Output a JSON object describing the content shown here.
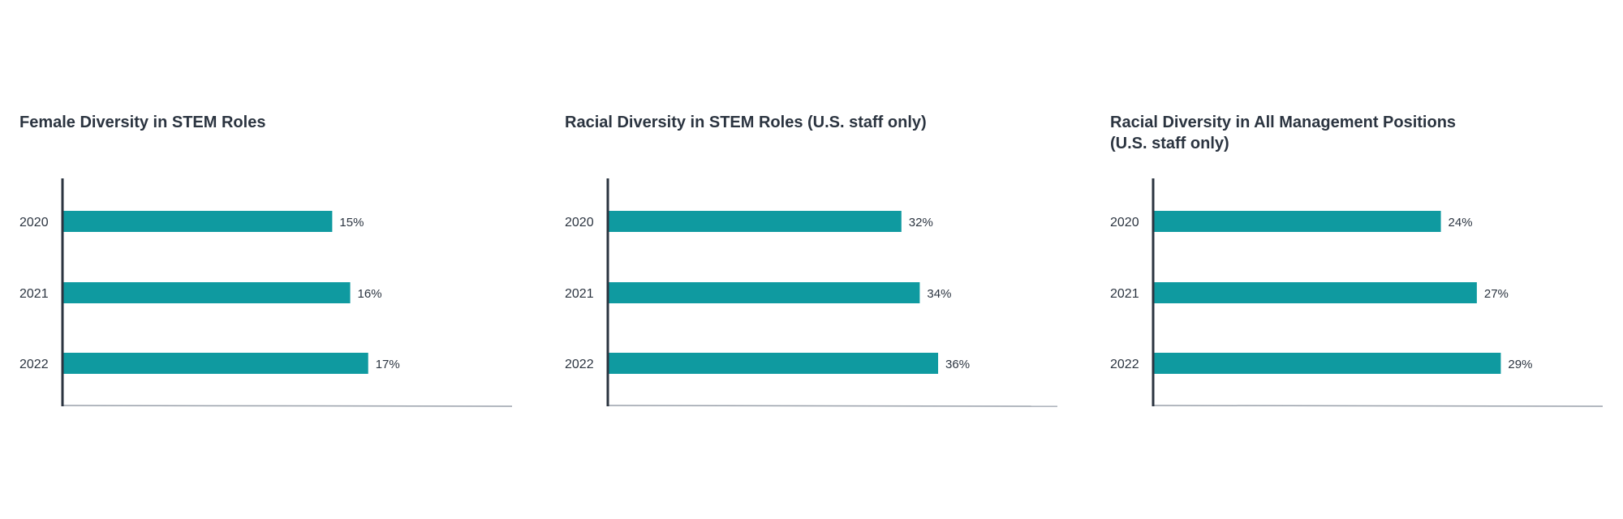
{
  "colors": {
    "bar": "#0f9aa0",
    "axis": "#2b3440",
    "baseline": "#9aa1ab",
    "text": "#2b3440"
  },
  "chart_data": [
    {
      "type": "bar",
      "orientation": "horizontal",
      "title": "Female Diversity in STEM Roles",
      "categories": [
        "2020",
        "2021",
        "2022"
      ],
      "values": [
        15,
        16,
        17
      ],
      "value_labels": [
        "15%",
        "16%",
        "17%"
      ],
      "xlim": [
        0,
        25
      ],
      "grid": false
    },
    {
      "type": "bar",
      "orientation": "horizontal",
      "title": "Racial Diversity in STEM Roles (U.S. staff only)",
      "categories": [
        "2020",
        "2021",
        "2022"
      ],
      "values": [
        32,
        34,
        36
      ],
      "value_labels": [
        "32%",
        "34%",
        "36%"
      ],
      "xlim": [
        0,
        49
      ],
      "grid": false
    },
    {
      "type": "bar",
      "orientation": "horizontal",
      "title": "Racial Diversity in All Management Positions (U.S. staff only)",
      "title_lines": [
        "Racial Diversity in All Management Positions",
        "(U.S. staff only)"
      ],
      "categories": [
        "2020",
        "2021",
        "2022"
      ],
      "values": [
        24,
        27,
        29
      ],
      "value_labels": [
        "24%",
        "27%",
        "29%"
      ],
      "xlim": [
        0,
        37.5
      ],
      "grid": false
    }
  ]
}
